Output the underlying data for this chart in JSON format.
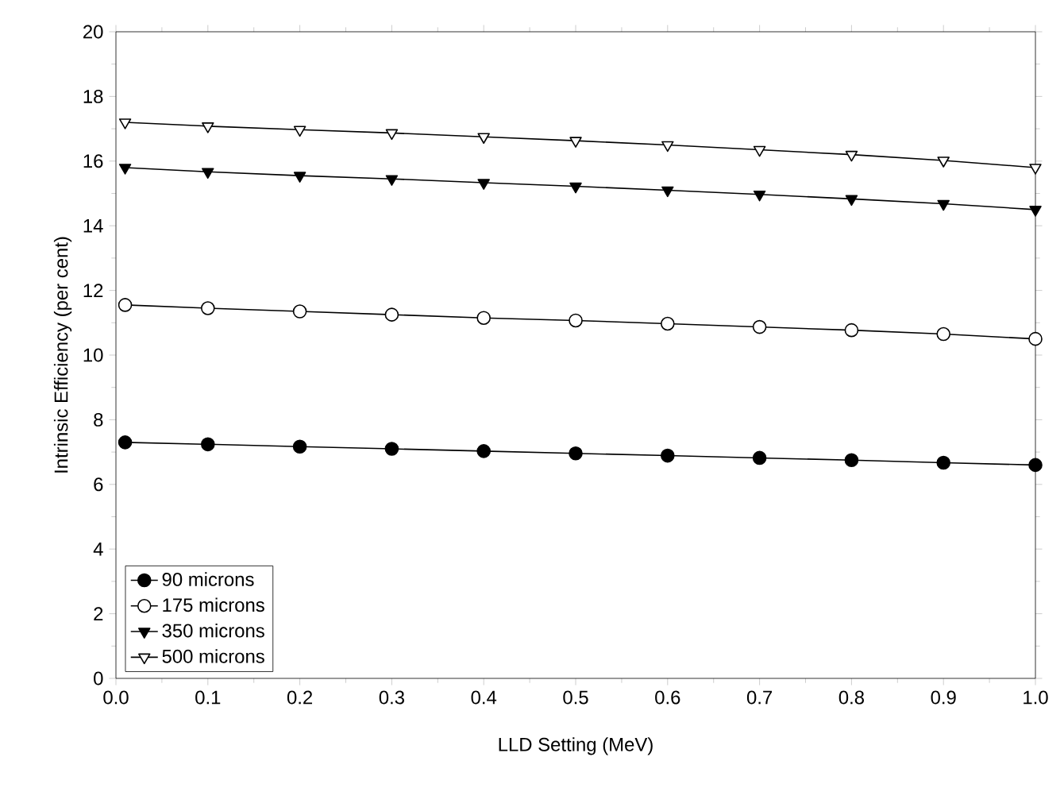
{
  "chart_data": {
    "type": "line",
    "xlabel": "LLD Setting (MeV)",
    "ylabel": "Intrinsic Efficiency (per cent)",
    "x": [
      0.01,
      0.1,
      0.2,
      0.3,
      0.4,
      0.5,
      0.6,
      0.7,
      0.8,
      0.9,
      1.0
    ],
    "series": [
      {
        "name": "90 microns",
        "color": "#000000",
        "marker": "circle",
        "values": [
          7.3,
          7.24,
          7.17,
          7.1,
          7.03,
          6.96,
          6.89,
          6.82,
          6.75,
          6.67,
          6.6
        ]
      },
      {
        "name": "175 microns",
        "color": "#000000",
        "marker": "circle-open",
        "values": [
          11.55,
          11.45,
          11.35,
          11.25,
          11.15,
          11.07,
          10.97,
          10.87,
          10.77,
          10.65,
          10.5
        ]
      },
      {
        "name": "350 microns",
        "color": "#000000",
        "marker": "triangle-down",
        "values": [
          15.8,
          15.67,
          15.55,
          15.45,
          15.33,
          15.22,
          15.1,
          14.97,
          14.83,
          14.68,
          14.5
        ]
      },
      {
        "name": "500 microns",
        "color": "#000000",
        "marker": "triangle-down-open",
        "values": [
          17.2,
          17.08,
          16.97,
          16.87,
          16.75,
          16.63,
          16.5,
          16.35,
          16.2,
          16.02,
          15.8
        ]
      }
    ],
    "xlim": [
      0,
      1.0
    ],
    "ylim": [
      0,
      20
    ],
    "xticks": [
      {
        "value": 0,
        "label": "0.0"
      },
      {
        "value": 0.1,
        "label": "0.1"
      },
      {
        "value": 0.2,
        "label": "0.2"
      },
      {
        "value": 0.3,
        "label": "0.3"
      },
      {
        "value": 0.4,
        "label": "0.4"
      },
      {
        "value": 0.5,
        "label": "0.5"
      },
      {
        "value": 0.6,
        "label": "0.6"
      },
      {
        "value": 0.7,
        "label": "0.7"
      },
      {
        "value": 0.8,
        "label": "0.8"
      },
      {
        "value": 0.9,
        "label": "0.9"
      },
      {
        "value": 1.0,
        "label": "1.0"
      }
    ],
    "yticks": [
      0,
      2,
      4,
      6,
      8,
      10,
      12,
      14,
      16,
      18,
      20
    ],
    "grid": false,
    "legend": "bottom left",
    "line_style": "solid"
  }
}
